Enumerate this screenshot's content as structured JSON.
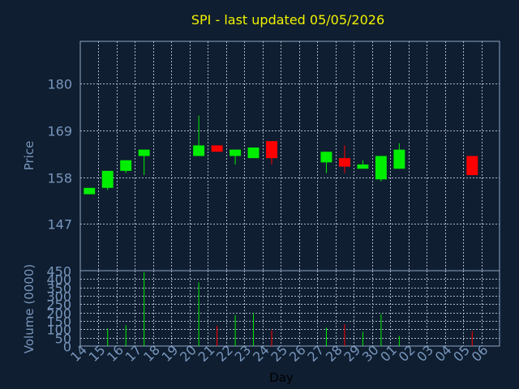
{
  "chart_data": [
    {
      "type": "candlestick",
      "title": "SPI - last updated 05/05/2026",
      "ylabel": "Price",
      "ylim": [
        136,
        190
      ],
      "yticks": [
        147,
        158,
        169,
        180
      ],
      "grid": true,
      "categories": [
        "14",
        "15",
        "16",
        "17",
        "18",
        "19",
        "20",
        "21",
        "22",
        "23",
        "24",
        "25",
        "26",
        "27",
        "28",
        "29",
        "30",
        "01",
        "02",
        "03",
        "04",
        "05",
        "06"
      ],
      "candles": [
        {
          "day": "14",
          "open": 154.0,
          "close": 155.5,
          "high": 155.5,
          "low": 154.0
        },
        {
          "day": "15",
          "open": 155.5,
          "close": 159.5,
          "high": 159.5,
          "low": 155.0
        },
        {
          "day": "16",
          "open": 159.5,
          "close": 162.0,
          "high": 162.0,
          "low": 159.0
        },
        {
          "day": "17",
          "open": 163.0,
          "close": 164.5,
          "high": 164.5,
          "low": 158.5
        },
        {
          "day": "20",
          "open": 163.0,
          "close": 165.5,
          "high": 172.5,
          "low": 163.0
        },
        {
          "day": "21",
          "open": 165.5,
          "close": 164.0,
          "high": 165.5,
          "low": 164.0
        },
        {
          "day": "22",
          "open": 163.0,
          "close": 164.5,
          "high": 164.5,
          "low": 161.0
        },
        {
          "day": "23",
          "open": 162.5,
          "close": 165.0,
          "high": 165.0,
          "low": 162.5
        },
        {
          "day": "24",
          "open": 166.5,
          "close": 162.5,
          "high": 166.5,
          "low": 161.0
        },
        {
          "day": "27",
          "open": 161.5,
          "close": 164.0,
          "high": 164.0,
          "low": 159.0
        },
        {
          "day": "28",
          "open": 162.5,
          "close": 160.5,
          "high": 165.5,
          "low": 159.0
        },
        {
          "day": "29",
          "open": 160.0,
          "close": 161.0,
          "high": 162.0,
          "low": 160.0
        },
        {
          "day": "30",
          "open": 157.5,
          "close": 163.0,
          "high": 163.0,
          "low": 157.0
        },
        {
          "day": "01",
          "open": 160.0,
          "close": 164.5,
          "high": 166.0,
          "low": 160.0
        },
        {
          "day": "05",
          "open": 163.0,
          "close": 158.5,
          "high": 163.0,
          "low": 158.5
        }
      ]
    },
    {
      "type": "bar",
      "xlabel": "Day",
      "ylabel": "Volume (0000)",
      "ylim": [
        0,
        450
      ],
      "yticks": [
        0,
        50,
        100,
        150,
        200,
        250,
        300,
        350,
        400,
        450
      ],
      "grid": true,
      "categories": [
        "14",
        "15",
        "16",
        "17",
        "18",
        "19",
        "20",
        "21",
        "22",
        "23",
        "24",
        "25",
        "26",
        "27",
        "28",
        "29",
        "30",
        "01",
        "02",
        "03",
        "04",
        "05",
        "06"
      ],
      "bars": [
        {
          "day": "14",
          "value": 0,
          "direction": "up"
        },
        {
          "day": "15",
          "value": 105,
          "direction": "up"
        },
        {
          "day": "16",
          "value": 125,
          "direction": "up"
        },
        {
          "day": "17",
          "value": 440,
          "direction": "up"
        },
        {
          "day": "20",
          "value": 380,
          "direction": "up"
        },
        {
          "day": "21",
          "value": 120,
          "direction": "down"
        },
        {
          "day": "22",
          "value": 185,
          "direction": "up"
        },
        {
          "day": "23",
          "value": 195,
          "direction": "up"
        },
        {
          "day": "24",
          "value": 95,
          "direction": "down"
        },
        {
          "day": "27",
          "value": 110,
          "direction": "up"
        },
        {
          "day": "28",
          "value": 130,
          "direction": "down"
        },
        {
          "day": "29",
          "value": 85,
          "direction": "up"
        },
        {
          "day": "30",
          "value": 190,
          "direction": "up"
        },
        {
          "day": "01",
          "value": 60,
          "direction": "up"
        },
        {
          "day": "05",
          "value": 90,
          "direction": "down"
        }
      ]
    }
  ],
  "colors": {
    "background": "#0f1e30",
    "plot_border": "#8fa6c3",
    "grid": "#a9b8cc",
    "tick_text": "#7896bd",
    "title": "#f2f200",
    "up": "#00ee00",
    "down": "#ff0000",
    "xlabel": "#000000"
  }
}
